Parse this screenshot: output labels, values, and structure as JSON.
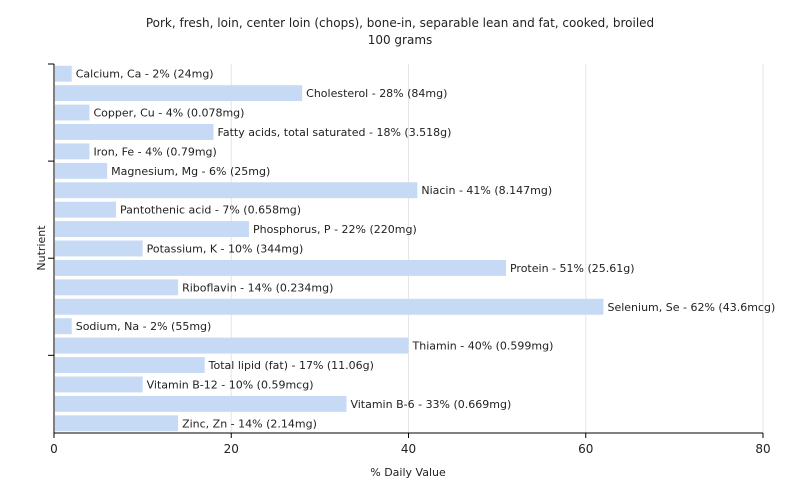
{
  "chart_data": {
    "type": "bar",
    "orientation": "horizontal",
    "title": "Pork, fresh, loin, center loin (chops), bone-in, separable lean and fat, cooked, broiled",
    "subtitle": "100 grams",
    "xlabel": "% Daily Value",
    "ylabel": "Nutrient",
    "xlim": [
      0,
      80
    ],
    "xticks": [
      "0",
      "20",
      "40",
      "60",
      "80"
    ],
    "grid": true,
    "bar_color": "#c6daf6",
    "categories": [
      "Calcium, Ca",
      "Cholesterol",
      "Copper, Cu",
      "Fatty acids, total saturated",
      "Iron, Fe",
      "Magnesium, Mg",
      "Niacin",
      "Pantothenic acid",
      "Phosphorus, P",
      "Potassium, K",
      "Protein",
      "Riboflavin",
      "Selenium, Se",
      "Sodium, Na",
      "Thiamin",
      "Total lipid (fat)",
      "Vitamin B-12",
      "Vitamin B-6",
      "Zinc, Zn"
    ],
    "values": [
      2,
      28,
      4,
      18,
      4,
      6,
      41,
      7,
      22,
      10,
      51,
      14,
      62,
      2,
      40,
      17,
      10,
      33,
      14
    ],
    "labels": [
      "Calcium, Ca - 2% (24mg)",
      "Cholesterol - 28% (84mg)",
      "Copper, Cu - 4% (0.078mg)",
      "Fatty acids, total saturated - 18% (3.518g)",
      "Iron, Fe - 4% (0.79mg)",
      "Magnesium, Mg - 6% (25mg)",
      "Niacin - 41% (8.147mg)",
      "Pantothenic acid - 7% (0.658mg)",
      "Phosphorus, P - 22% (220mg)",
      "Potassium, K - 10% (344mg)",
      "Protein - 51% (25.61g)",
      "Riboflavin - 14% (0.234mg)",
      "Selenium, Se - 62% (43.6mcg)",
      "Sodium, Na - 2% (55mg)",
      "Thiamin - 40% (0.599mg)",
      "Total lipid (fat) - 17% (11.06g)",
      "Vitamin B-12 - 10% (0.59mcg)",
      "Vitamin B-6 - 33% (0.669mg)",
      "Zinc, Zn - 14% (2.14mg)"
    ]
  }
}
